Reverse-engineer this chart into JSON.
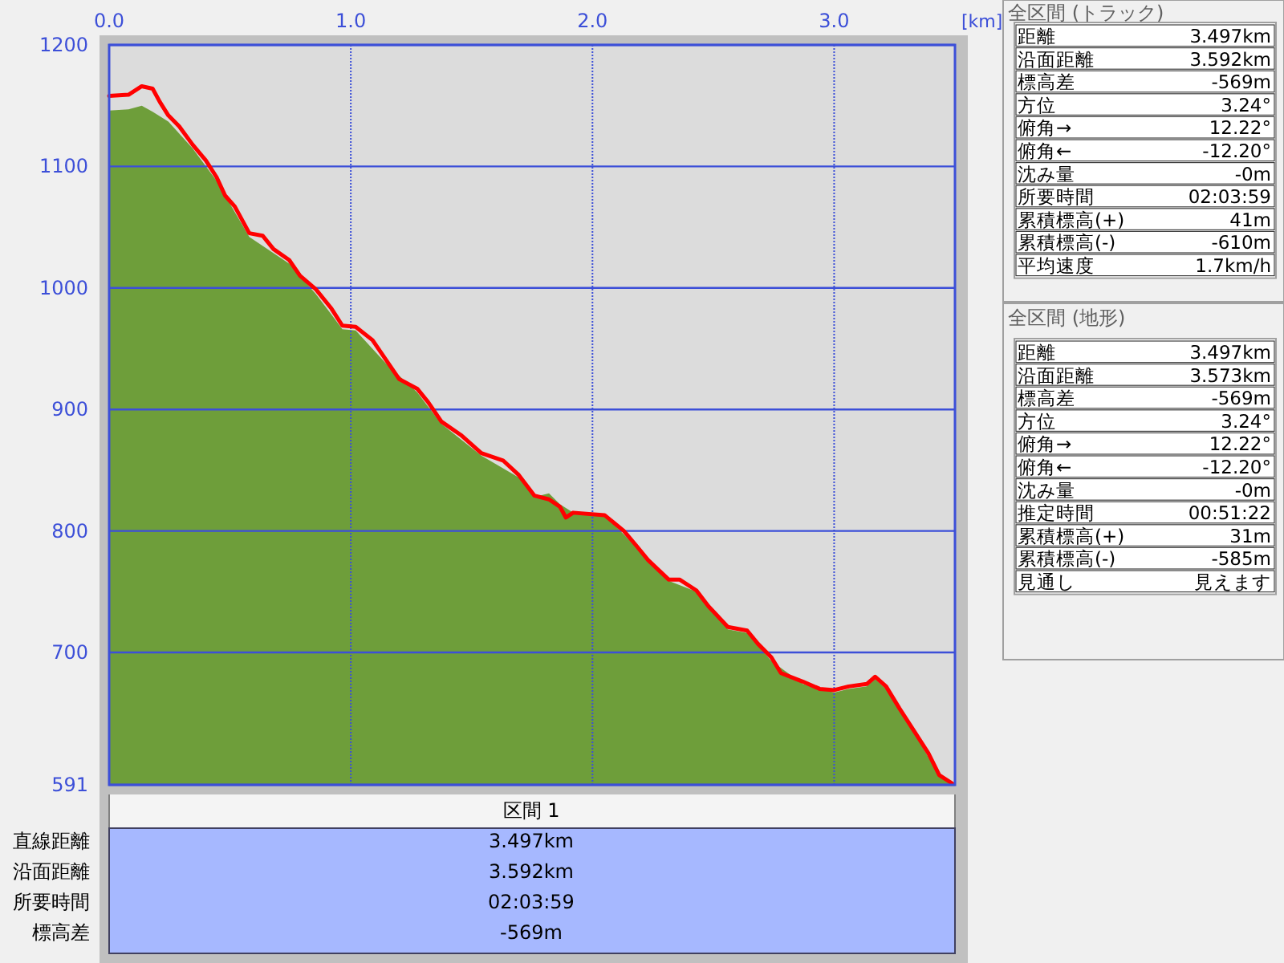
{
  "chart_data": [
    {
      "type": "area",
      "xlabel": "[km]",
      "xlim": [
        0,
        3.5
      ],
      "ylim": [
        591,
        1200
      ],
      "xticks": [
        {
          "value": 0,
          "label": "0.0"
        },
        {
          "value": 1,
          "label": "1.0"
        },
        {
          "value": 2,
          "label": "2.0"
        },
        {
          "value": 3,
          "label": "3.0"
        }
      ],
      "yticks": [
        591,
        700,
        800,
        900,
        1000,
        1100,
        1200
      ],
      "grid": true,
      "series": [
        {
          "type": "area",
          "color": "#6e9e3a",
          "x": [
            0,
            0.08,
            0.135,
            0.18,
            0.245,
            0.345,
            0.445,
            0.58,
            0.745,
            0.855,
            0.92,
            0.965,
            1.02,
            1.145,
            1.275,
            1.375,
            1.54,
            1.695,
            1.76,
            1.82,
            1.865,
            1.92,
            2.05,
            2.185,
            2.315,
            2.43,
            2.56,
            2.64,
            2.74,
            2.87,
            3.0,
            3.06,
            3.135,
            3.17,
            3.215,
            3.335,
            3.435,
            3.497
          ],
          "values": [
            1146,
            1147,
            1150,
            1145,
            1137,
            1115,
            1088,
            1042,
            1020,
            995,
            978,
            966,
            965,
            938,
            914,
            888,
            862,
            844,
            828,
            831,
            822,
            815,
            813,
            786,
            759,
            750,
            719,
            716,
            693,
            674,
            667,
            670,
            672,
            678,
            670,
            633,
            598,
            591
          ]
        },
        {
          "type": "line",
          "color": "#ff0000",
          "x": [
            0,
            0.08,
            0.135,
            0.18,
            0.21,
            0.245,
            0.29,
            0.345,
            0.4,
            0.445,
            0.48,
            0.52,
            0.58,
            0.635,
            0.68,
            0.745,
            0.79,
            0.855,
            0.92,
            0.965,
            1.02,
            1.09,
            1.145,
            1.2,
            1.275,
            1.32,
            1.375,
            1.455,
            1.54,
            1.63,
            1.695,
            1.76,
            1.82,
            1.865,
            1.89,
            1.92,
            2.05,
            2.13,
            2.185,
            2.23,
            2.315,
            2.36,
            2.43,
            2.48,
            2.56,
            2.64,
            2.685,
            2.74,
            2.78,
            2.87,
            2.94,
            3.0,
            3.06,
            3.135,
            3.17,
            3.215,
            3.27,
            3.335,
            3.39,
            3.435,
            3.49
          ],
          "values": [
            1158,
            1159,
            1166,
            1164,
            1153,
            1142,
            1133,
            1118,
            1105,
            1091,
            1076,
            1067,
            1045,
            1043,
            1032,
            1023,
            1010,
            999,
            983,
            969,
            968,
            957,
            941,
            925,
            917,
            906,
            890,
            879,
            864,
            858,
            846,
            829,
            826,
            820,
            811,
            815,
            813,
            800,
            787,
            776,
            760,
            760,
            751,
            738,
            721,
            718,
            707,
            696,
            683,
            676,
            670,
            669,
            672,
            674,
            680,
            672,
            654,
            634,
            617,
            599,
            592
          ]
        }
      ]
    },
    {
      "type": "other",
      "title": "全区間 (トラック)",
      "annotations": [
        "距離",
        "3.497km",
        "沿面距離",
        "3.592km",
        "標高差",
        "-569m",
        "方位",
        "3.24°",
        "俯角→",
        "12.22°",
        "俯角←",
        "-12.20°",
        "沈み量",
        "-0m",
        "所要時間",
        "02:03:59",
        "累積標高(+)",
        "41m",
        "累積標高(-)",
        "-610m",
        "平均速度",
        "1.7km/h"
      ]
    },
    {
      "type": "other",
      "title": "全区間 (地形)",
      "annotations": [
        "距離",
        "3.497km",
        "沿面距離",
        "3.573km",
        "標高差",
        "-569m",
        "方位",
        "3.24°",
        "俯角→",
        "12.22°",
        "俯角←",
        "-12.20°",
        "沈み量",
        "-0m",
        "推定時間",
        "00:51:22",
        "累積標高(+)",
        "31m",
        "累積標高(-)",
        "-585m",
        "見通し",
        "見えます"
      ]
    },
    {
      "type": "other",
      "title": "区間 1",
      "annotations": [
        "直線距離",
        "3.497km",
        "沿面距離",
        "3.592km",
        "所要時間",
        "02:03:59",
        "標高差",
        "-569m"
      ]
    }
  ]
}
